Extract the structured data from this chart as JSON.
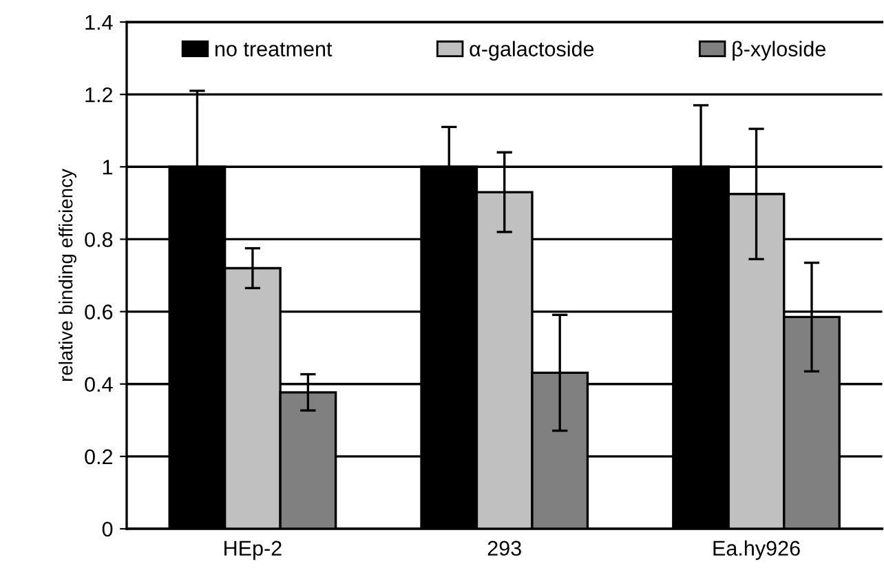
{
  "chart_data": {
    "type": "bar",
    "ylabel": "relative binding efficiency",
    "categories": [
      "HEp-2",
      "293",
      "Ea.hy926"
    ],
    "series": [
      {
        "name": "no treatment",
        "color": "#000000",
        "values": [
          1.0,
          1.0,
          1.0
        ],
        "errors": [
          0.21,
          0.11,
          0.17
        ]
      },
      {
        "name": "α-galactoside",
        "color": "#c0c0c0",
        "values": [
          0.72,
          0.93,
          0.925
        ],
        "errors": [
          0.055,
          0.11,
          0.18
        ]
      },
      {
        "name": "β-xyloside",
        "color": "#808080",
        "values": [
          0.377,
          0.431,
          0.585
        ],
        "errors": [
          0.05,
          0.16,
          0.15
        ]
      }
    ],
    "ylim": [
      0,
      1.4
    ],
    "yticks": [
      0,
      0.2,
      0.4,
      0.6,
      0.8,
      1,
      1.2,
      1.4
    ],
    "grid": "y",
    "legend": "top"
  }
}
